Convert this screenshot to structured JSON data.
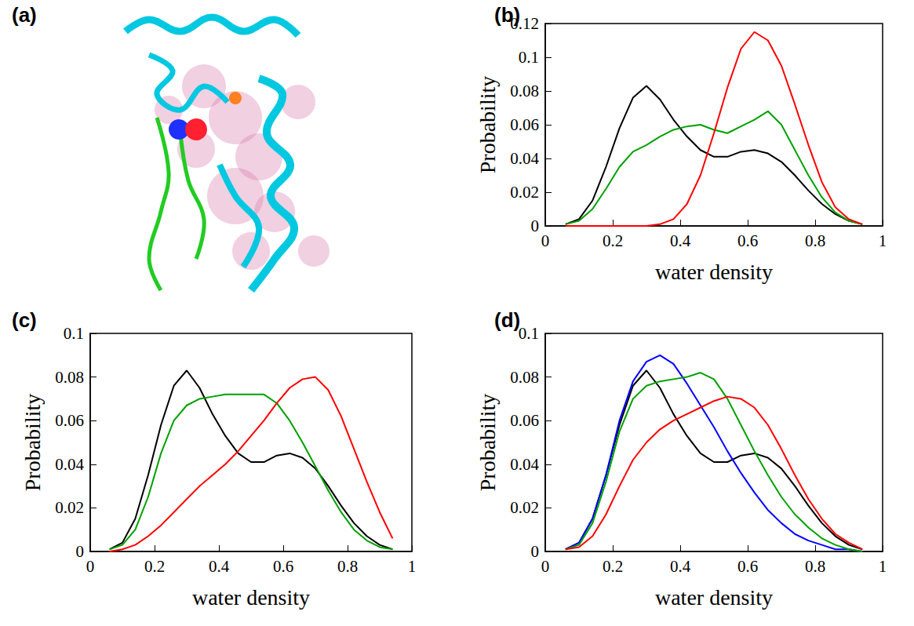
{
  "panel_a": {
    "title": "(a)"
  },
  "chart_data": [
    {
      "type": "line",
      "title": "(b)",
      "x_label": "water density",
      "y_label": "Probability",
      "grid": false,
      "x": [
        0.06,
        0.1,
        0.14,
        0.18,
        0.22,
        0.26,
        0.3,
        0.34,
        0.38,
        0.42,
        0.46,
        0.5,
        0.54,
        0.58,
        0.62,
        0.66,
        0.7,
        0.74,
        0.78,
        0.82,
        0.86,
        0.9,
        0.94
      ],
      "xlim": [
        0,
        1
      ],
      "xticks": [
        0,
        0.2,
        0.4,
        0.6,
        0.8,
        1
      ],
      "ylim": [
        0,
        0.12
      ],
      "yticks": [
        0,
        0.02,
        0.04,
        0.06,
        0.08,
        0.1,
        0.12
      ],
      "series": [
        {
          "color": "#000000",
          "values": [
            0.001,
            0.004,
            0.015,
            0.035,
            0.058,
            0.076,
            0.083,
            0.075,
            0.063,
            0.053,
            0.045,
            0.041,
            0.041,
            0.044,
            0.045,
            0.043,
            0.038,
            0.03,
            0.021,
            0.013,
            0.007,
            0.003,
            0.001
          ]
        },
        {
          "color": "#00a000",
          "values": [
            0.001,
            0.003,
            0.01,
            0.022,
            0.035,
            0.044,
            0.048,
            0.053,
            0.057,
            0.059,
            0.06,
            0.057,
            0.055,
            0.059,
            0.063,
            0.068,
            0.06,
            0.045,
            0.03,
            0.017,
            0.008,
            0.003,
            0.001
          ]
        },
        {
          "color": "#ff0000",
          "values": [
            0,
            0,
            0,
            0,
            0,
            0,
            0,
            0.001,
            0.004,
            0.013,
            0.03,
            0.055,
            0.082,
            0.105,
            0.115,
            0.11,
            0.095,
            0.072,
            0.048,
            0.026,
            0.011,
            0.004,
            0.001
          ]
        }
      ]
    },
    {
      "type": "line",
      "title": "(c)",
      "x_label": "water density",
      "y_label": "Probability",
      "grid": false,
      "x": [
        0.06,
        0.1,
        0.14,
        0.18,
        0.22,
        0.26,
        0.3,
        0.34,
        0.38,
        0.42,
        0.46,
        0.5,
        0.54,
        0.58,
        0.62,
        0.66,
        0.7,
        0.74,
        0.78,
        0.82,
        0.86,
        0.9,
        0.94
      ],
      "xlim": [
        0,
        1
      ],
      "xticks": [
        0,
        0.2,
        0.4,
        0.6,
        0.8,
        1
      ],
      "ylim": [
        0,
        0.1
      ],
      "yticks": [
        0,
        0.02,
        0.04,
        0.06,
        0.08,
        0.1
      ],
      "series": [
        {
          "color": "#000000",
          "values": [
            0.001,
            0.004,
            0.015,
            0.035,
            0.058,
            0.076,
            0.083,
            0.075,
            0.063,
            0.053,
            0.045,
            0.041,
            0.041,
            0.044,
            0.045,
            0.043,
            0.038,
            0.03,
            0.021,
            0.013,
            0.007,
            0.003,
            0.001
          ]
        },
        {
          "color": "#00a000",
          "values": [
            0.001,
            0.003,
            0.01,
            0.025,
            0.045,
            0.06,
            0.067,
            0.07,
            0.071,
            0.072,
            0.072,
            0.072,
            0.072,
            0.068,
            0.06,
            0.05,
            0.039,
            0.028,
            0.018,
            0.01,
            0.005,
            0.002,
            0.001
          ]
        },
        {
          "color": "#ff0000",
          "values": [
            0,
            0.001,
            0.003,
            0.007,
            0.012,
            0.018,
            0.024,
            0.03,
            0.035,
            0.04,
            0.046,
            0.053,
            0.06,
            0.068,
            0.075,
            0.079,
            0.08,
            0.074,
            0.062,
            0.047,
            0.032,
            0.018,
            0.006
          ]
        }
      ]
    },
    {
      "type": "line",
      "title": "(d)",
      "x_label": "water density",
      "y_label": "Probability",
      "grid": false,
      "x": [
        0.06,
        0.1,
        0.14,
        0.18,
        0.22,
        0.26,
        0.3,
        0.34,
        0.38,
        0.42,
        0.46,
        0.5,
        0.54,
        0.58,
        0.62,
        0.66,
        0.7,
        0.74,
        0.78,
        0.82,
        0.86,
        0.9,
        0.94
      ],
      "xlim": [
        0,
        1
      ],
      "xticks": [
        0,
        0.2,
        0.4,
        0.6,
        0.8,
        1
      ],
      "ylim": [
        0,
        0.1
      ],
      "yticks": [
        0,
        0.02,
        0.04,
        0.06,
        0.08,
        0.1
      ],
      "series": [
        {
          "color": "#000000",
          "values": [
            0.001,
            0.004,
            0.015,
            0.035,
            0.058,
            0.076,
            0.083,
            0.075,
            0.063,
            0.053,
            0.045,
            0.041,
            0.041,
            0.044,
            0.045,
            0.043,
            0.038,
            0.03,
            0.021,
            0.013,
            0.007,
            0.003,
            0.001
          ]
        },
        {
          "color": "#0000ff",
          "values": [
            0.001,
            0.004,
            0.015,
            0.035,
            0.06,
            0.078,
            0.087,
            0.09,
            0.086,
            0.077,
            0.067,
            0.057,
            0.046,
            0.036,
            0.027,
            0.019,
            0.013,
            0.008,
            0.005,
            0.003,
            0.001,
            0.001,
            0
          ]
        },
        {
          "color": "#00a000",
          "values": [
            0.001,
            0.003,
            0.013,
            0.032,
            0.055,
            0.07,
            0.076,
            0.078,
            0.079,
            0.08,
            0.082,
            0.079,
            0.07,
            0.058,
            0.046,
            0.035,
            0.025,
            0.017,
            0.011,
            0.006,
            0.003,
            0.001,
            0
          ]
        },
        {
          "color": "#ff0000",
          "values": [
            0.001,
            0.002,
            0.007,
            0.017,
            0.03,
            0.042,
            0.05,
            0.056,
            0.06,
            0.063,
            0.066,
            0.069,
            0.071,
            0.07,
            0.066,
            0.058,
            0.047,
            0.035,
            0.024,
            0.015,
            0.008,
            0.004,
            0.001
          ]
        }
      ]
    }
  ]
}
